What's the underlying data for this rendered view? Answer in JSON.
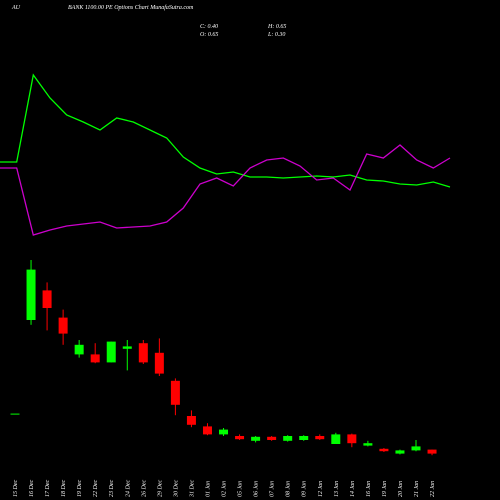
{
  "chart_data": [
    {
      "type": "candlestick",
      "title": "AU",
      "subtitle": "BANK 1100.00 PE Options Chart MunafaSutra.com",
      "annotations": [
        "C: 0.40",
        "H: 0.65",
        "O: 0.65",
        "L: 0.30"
      ],
      "categories": [
        "15 Dec",
        "16 Dec",
        "17 Dec",
        "18 Dec",
        "19 Dec",
        "22 Dec",
        "23 Dec",
        "24 Dec",
        "26 Dec",
        "29 Dec",
        "30 Dec",
        "31 Dec",
        "01 Jan",
        "02 Jan",
        "05 Jan",
        "06 Jan",
        "07 Jan",
        "08 Jan",
        "09 Jan",
        "12 Jan",
        "13 Jan",
        "14 Jan",
        "16 Jan",
        "19 Jan",
        "20 Jan",
        "21 Jan",
        "22 Jan"
      ],
      "open": [
        2.9,
        8.75,
        10.6,
        8.9,
        6.6,
        6.6,
        6.1,
        6.95,
        7.3,
        6.7,
        4.95,
        2.75,
        2.1,
        1.6,
        1.5,
        1.2,
        1.45,
        1.2,
        1.25,
        1.5,
        1.0,
        1.6,
        0.9,
        0.7,
        0.4,
        0.6,
        0.65
      ],
      "high": [
        2.9,
        12.5,
        11.1,
        9.4,
        7.5,
        7.3,
        7.4,
        7.5,
        7.5,
        7.6,
        5.1,
        3.1,
        2.3,
        2.0,
        1.6,
        1.5,
        1.5,
        1.55,
        1.55,
        1.6,
        1.7,
        1.65,
        1.2,
        0.75,
        0.65,
        1.25,
        0.65
      ],
      "low": [
        2.9,
        8.45,
        8.1,
        7.2,
        6.4,
        6.05,
        6.1,
        5.6,
        6.0,
        5.25,
        2.8,
        2.05,
        1.55,
        1.5,
        1.25,
        1.1,
        1.2,
        1.15,
        1.2,
        1.25,
        1.0,
        0.8,
        0.85,
        0.5,
        0.35,
        0.55,
        0.3
      ],
      "close": [
        2.9,
        11.9,
        9.5,
        7.9,
        7.2,
        6.1,
        7.4,
        7.1,
        6.1,
        5.4,
        3.45,
        2.2,
        1.6,
        1.9,
        1.3,
        1.45,
        1.25,
        1.5,
        1.5,
        1.3,
        1.6,
        1.05,
        1.05,
        0.55,
        0.6,
        0.85,
        0.4
      ],
      "up_color": "#00ff00",
      "down_color": "#ff0000",
      "ylim": [
        0,
        12.5
      ]
    },
    {
      "type": "line",
      "series": [
        {
          "color": "#00ff00",
          "values": [
            44,
            44,
            87.5,
            76,
            67.5,
            64,
            60,
            66,
            64,
            60,
            56,
            46.5,
            41,
            38,
            39,
            36.5,
            36.5,
            36,
            36.5,
            37,
            36.5,
            37.5,
            35,
            34.5,
            33,
            32.5,
            34,
            31.5
          ]
        },
        {
          "color": "#cc00cc",
          "values": [
            41,
            41,
            7.5,
            10,
            12,
            13,
            14,
            11,
            11.5,
            12,
            14,
            21,
            33,
            36,
            32,
            41,
            45,
            46,
            42,
            35,
            36,
            30,
            48,
            46,
            52.5,
            45,
            41,
            46
          ]
        }
      ],
      "ylim": [
        0,
        100
      ]
    }
  ]
}
